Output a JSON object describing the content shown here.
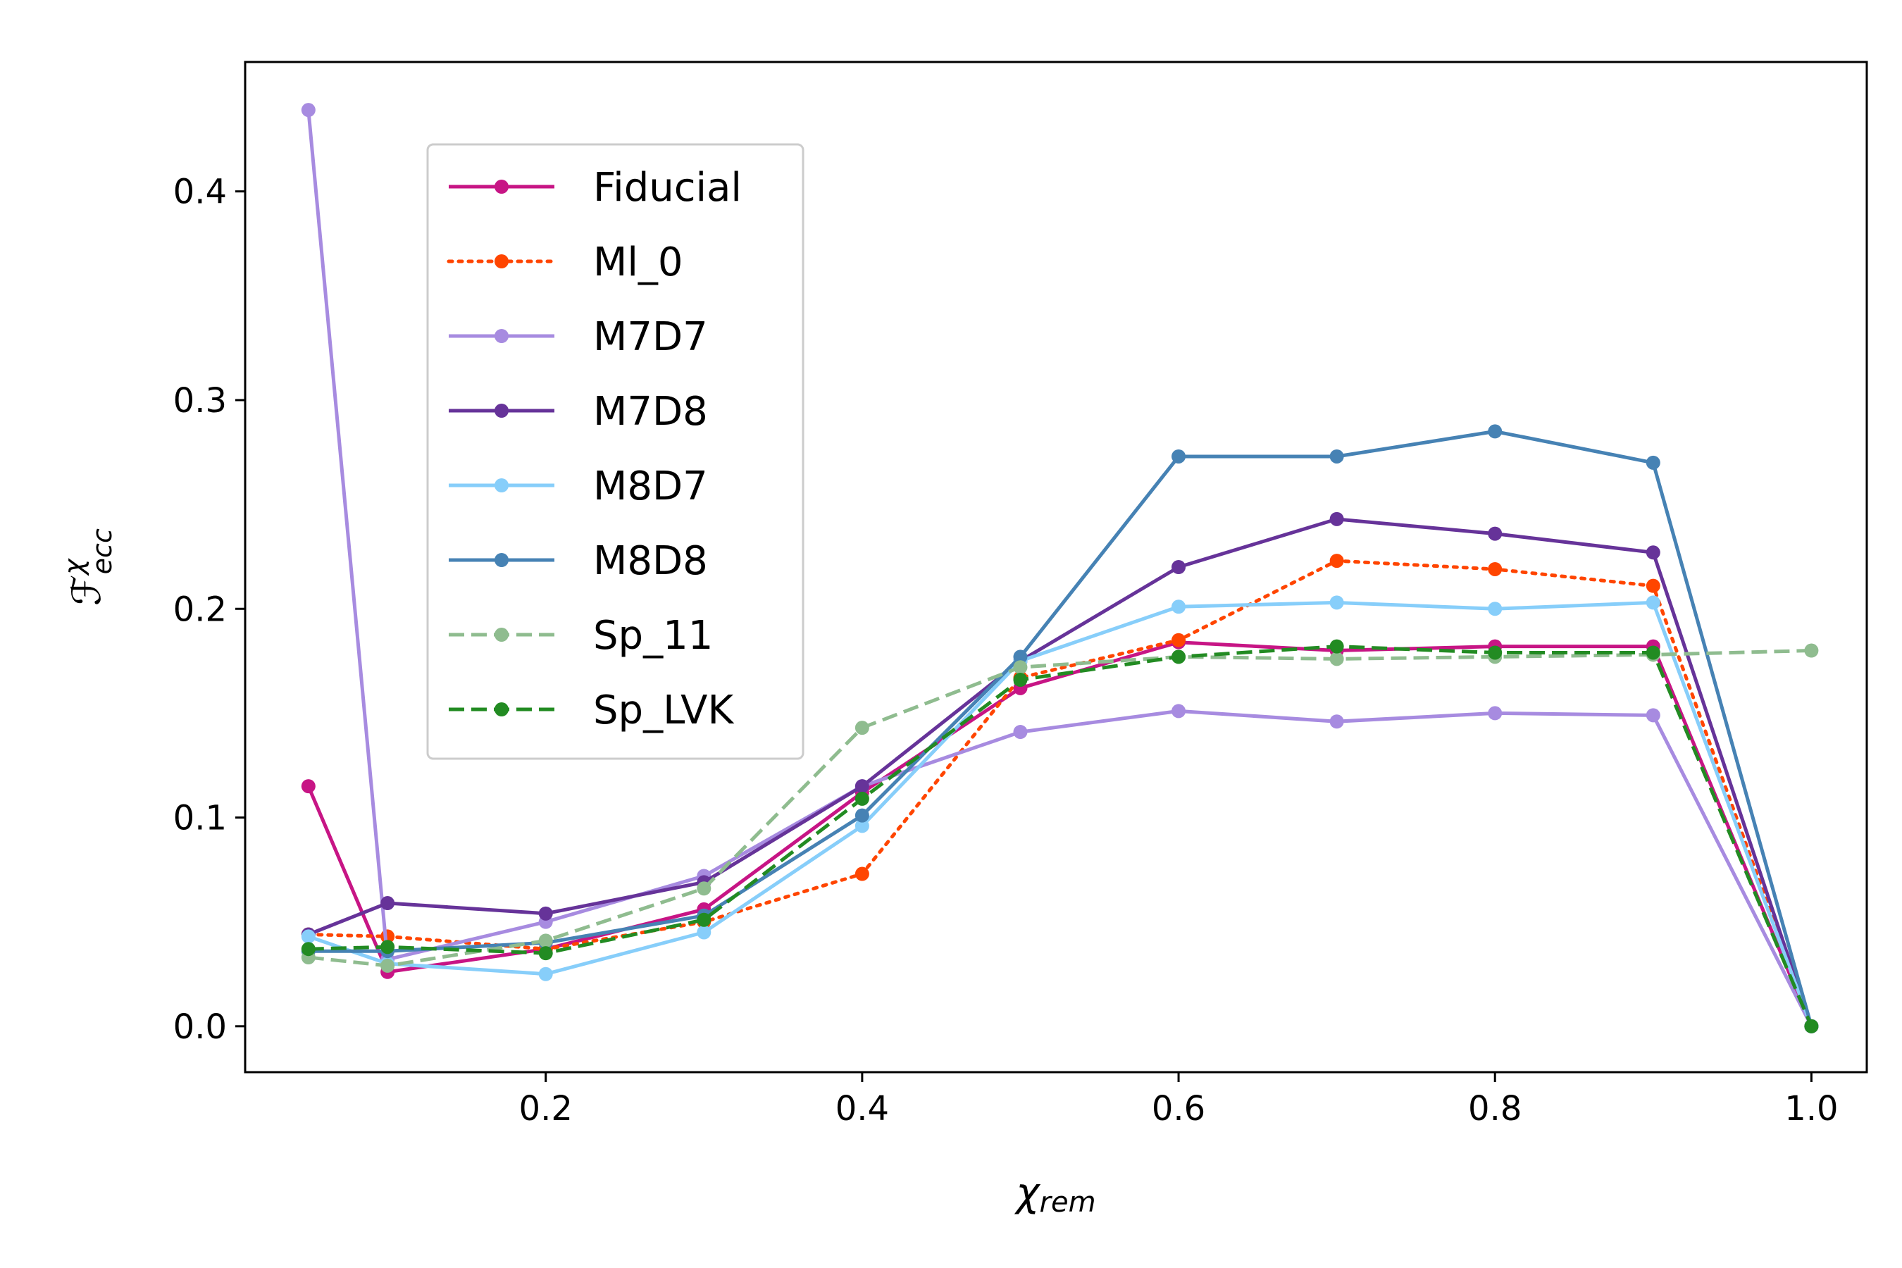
{
  "chart_data": {
    "type": "line",
    "title": "",
    "xlabel_main": "χ",
    "xlabel_sub": "rem",
    "ylabel_main": "ℱ",
    "ylabel_sup": "χ",
    "ylabel_sub": "ecc",
    "xlim": [
      0.01,
      1.035
    ],
    "ylim": [
      -0.022,
      0.462
    ],
    "xticks": [
      0.2,
      0.4,
      0.6,
      0.8,
      1.0
    ],
    "xtick_labels": [
      "0.2",
      "0.4",
      "0.6",
      "0.8",
      "1.0"
    ],
    "yticks": [
      0.0,
      0.1,
      0.2,
      0.3,
      0.4
    ],
    "ytick_labels": [
      "0.0",
      "0.1",
      "0.2",
      "0.3",
      "0.4"
    ],
    "grid": false,
    "legend_position": "upper-left",
    "x": [
      0.05,
      0.1,
      0.2,
      0.3,
      0.4,
      0.5,
      0.6,
      0.7,
      0.8,
      0.9,
      1.0
    ],
    "series": [
      {
        "name": "Fiducial",
        "color": "#c71585",
        "dash": "solid",
        "values": [
          0.115,
          0.026,
          0.037,
          0.056,
          0.112,
          0.162,
          0.184,
          0.18,
          0.182,
          0.182,
          0.0
        ]
      },
      {
        "name": "Ml_0",
        "color": "#ff4500",
        "dash": "dotted",
        "values": [
          0.044,
          0.043,
          0.037,
          0.05,
          0.073,
          0.167,
          0.185,
          0.223,
          0.219,
          0.211,
          0.0
        ]
      },
      {
        "name": "M7D7",
        "color": "#a78be0",
        "dash": "solid",
        "values": [
          0.439,
          0.032,
          0.05,
          0.072,
          0.115,
          0.141,
          0.151,
          0.146,
          0.15,
          0.149,
          0.0
        ]
      },
      {
        "name": "M7D8",
        "color": "#663399",
        "dash": "solid",
        "values": [
          0.044,
          0.059,
          0.054,
          0.069,
          0.115,
          0.175,
          0.22,
          0.243,
          0.236,
          0.227,
          0.0
        ]
      },
      {
        "name": "M8D7",
        "color": "#87cefa",
        "dash": "solid",
        "values": [
          0.043,
          0.03,
          0.025,
          0.045,
          0.096,
          0.175,
          0.201,
          0.203,
          0.2,
          0.203,
          0.0
        ]
      },
      {
        "name": "M8D8",
        "color": "#4682b4",
        "dash": "solid",
        "values": [
          0.036,
          0.036,
          0.04,
          0.053,
          0.101,
          0.177,
          0.273,
          0.273,
          0.285,
          0.27,
          0.0
        ]
      },
      {
        "name": "Sp_11",
        "color": "#8fbc8f",
        "dash": "dashed",
        "values": [
          0.033,
          0.029,
          0.041,
          0.066,
          0.143,
          0.172,
          0.177,
          0.176,
          0.177,
          0.178,
          0.18
        ]
      },
      {
        "name": "Sp_LVK",
        "color": "#228b22",
        "dash": "dashed",
        "values": [
          0.037,
          0.038,
          0.035,
          0.051,
          0.109,
          0.166,
          0.177,
          0.182,
          0.179,
          0.179,
          0.0
        ]
      }
    ]
  }
}
